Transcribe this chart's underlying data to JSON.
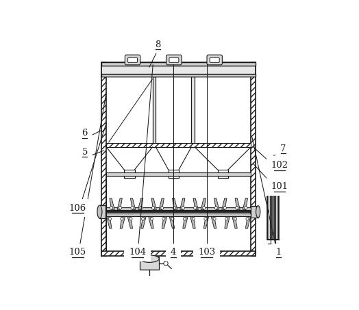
{
  "bg_color": "#ffffff",
  "line_color": "#1a1a1a",
  "fig_width": 5.24,
  "fig_height": 4.53,
  "dpi": 100,
  "labels_info": {
    "1": [
      0.895,
      0.075,
      0.785,
      0.58
    ],
    "4": [
      0.455,
      0.075,
      0.455,
      0.885
    ],
    "5": [
      0.085,
      0.495,
      0.165,
      0.525
    ],
    "6": [
      0.085,
      0.575,
      0.155,
      0.61
    ],
    "7": [
      0.915,
      0.51,
      0.875,
      0.505
    ],
    "8": [
      0.39,
      0.945,
      0.355,
      0.875
    ],
    "101": [
      0.9,
      0.35,
      0.79,
      0.47
    ],
    "102": [
      0.9,
      0.44,
      0.79,
      0.54
    ],
    "103": [
      0.595,
      0.075,
      0.595,
      0.885
    ],
    "104": [
      0.305,
      0.075,
      0.37,
      0.885
    ],
    "105": [
      0.055,
      0.075,
      0.175,
      0.77
    ],
    "106": [
      0.055,
      0.26,
      0.175,
      0.64
    ]
  }
}
